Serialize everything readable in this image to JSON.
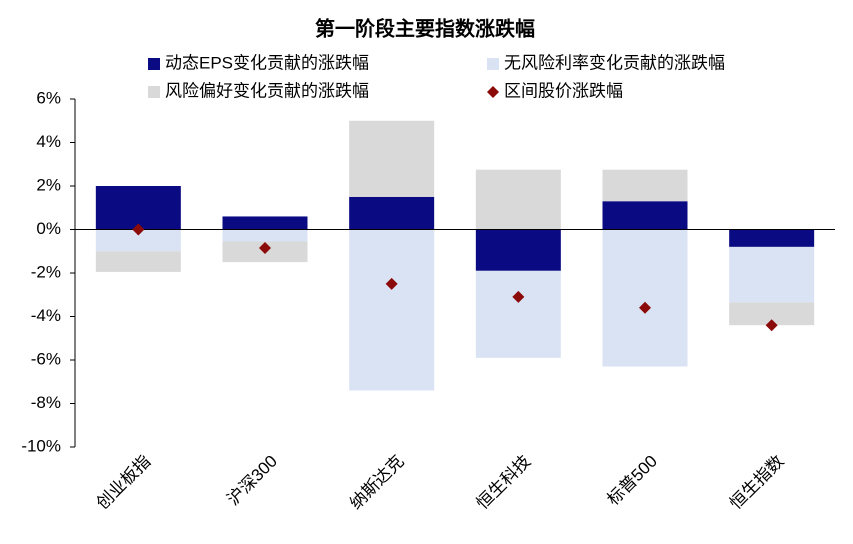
{
  "chart_data": {
    "type": "bar",
    "stacked": true,
    "title": "第一阶段主要指数涨跌幅",
    "categories": [
      "创业板指",
      "沪深300",
      "纳斯达克",
      "恒生科技",
      "标普500",
      "恒生指数"
    ],
    "series": [
      {
        "name": "动态EPS变化贡献的涨跌幅",
        "color": "#0a0a82",
        "values": [
          2.0,
          0.6,
          1.5,
          -1.9,
          1.3,
          -0.8
        ]
      },
      {
        "name": "无风险利率变化贡献的涨跌幅",
        "color": "#dae3f3",
        "values": [
          -1.0,
          -0.55,
          -7.4,
          -4.0,
          -6.3,
          -2.55
        ]
      },
      {
        "name": "风险偏好变化贡献的涨跌幅",
        "color": "#d9d9d9",
        "values": [
          -0.95,
          -0.95,
          3.5,
          2.75,
          1.45,
          -1.05
        ]
      },
      {
        "name": "区间股价涨跌幅",
        "type": "scatter",
        "marker": "diamond",
        "color": "#8b0a0a",
        "values": [
          0.0,
          -0.85,
          -2.5,
          -3.1,
          -3.6,
          -4.4
        ]
      }
    ],
    "ylim": [
      -10,
      6
    ],
    "yticks": [
      {
        "value": -10,
        "label": "-10%"
      },
      {
        "value": -8,
        "label": "-8%"
      },
      {
        "value": -6,
        "label": "-6%"
      },
      {
        "value": -4,
        "label": "-4%"
      },
      {
        "value": -2,
        "label": "-2%"
      },
      {
        "value": 0,
        "label": "0%"
      },
      {
        "value": 2,
        "label": "2%"
      },
      {
        "value": 4,
        "label": "4%"
      },
      {
        "value": 6,
        "label": "6%"
      }
    ]
  }
}
